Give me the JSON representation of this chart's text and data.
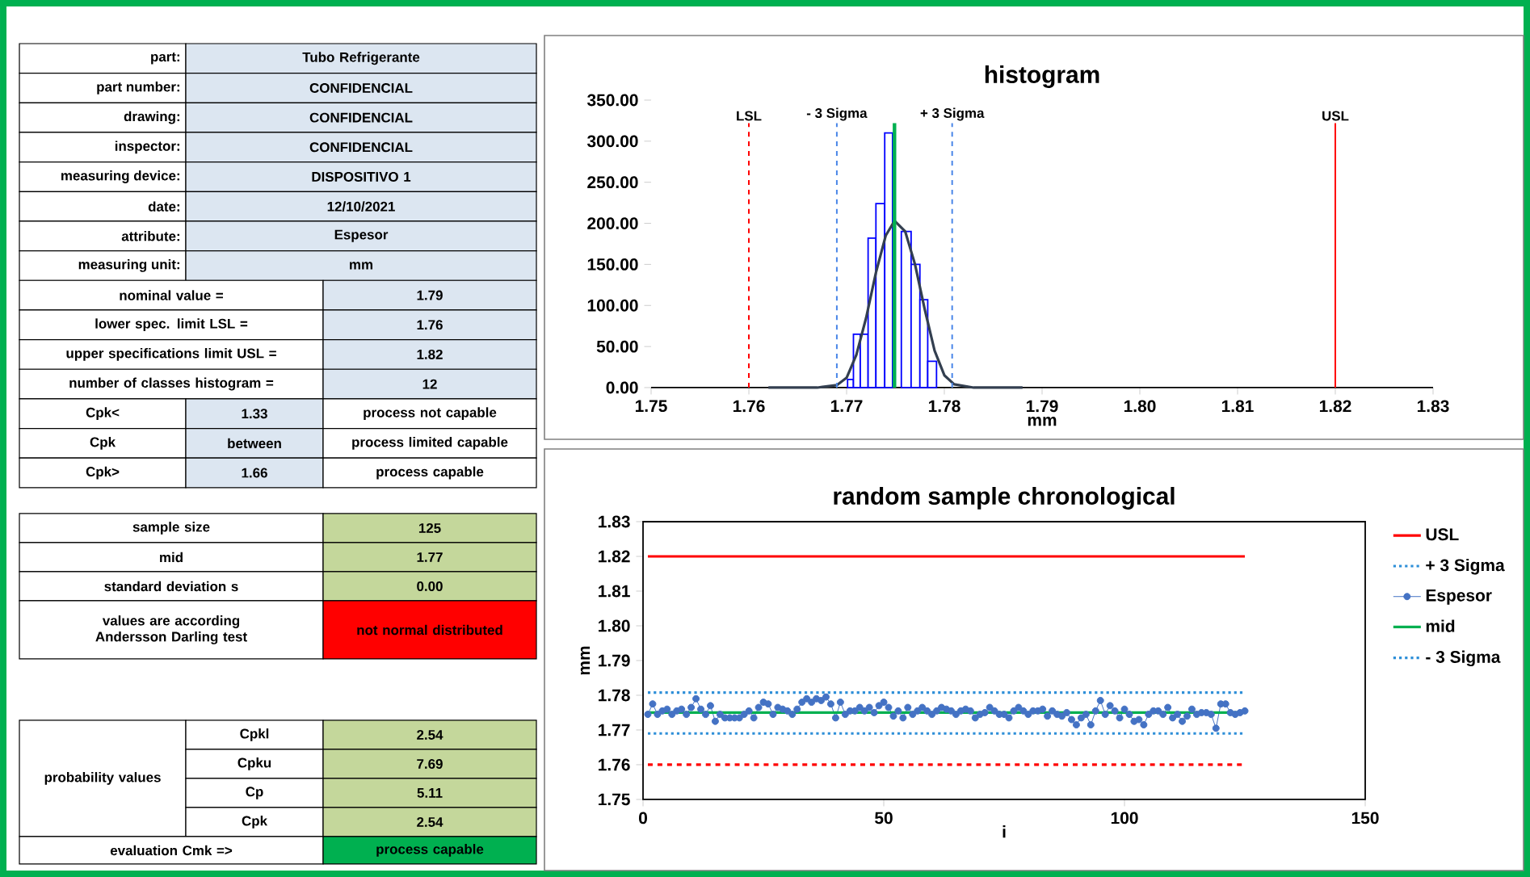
{
  "chart_data": [
    {
      "type": "other",
      "annotations": [
        "part:",
        "Tubo Refrigerante",
        "part number:",
        "CONFIDENCIAL",
        "drawing:",
        "CONFIDENCIAL",
        "inspector:",
        "CONFIDENCIAL",
        "measuring device:",
        "DISPOSITIVO 1",
        "date:",
        "12/10/2021",
        "attribute:",
        "Espesor",
        "measuring unit:",
        "mm",
        "nominal value =",
        "1.79",
        "lower spec. limit LSL =",
        "1.76",
        "upper specifications limit USL =",
        "1.82",
        "number of classes histogram =",
        "12",
        "Cpk<",
        "1.33",
        "process not capable",
        "Cpk",
        "between",
        "process limited capable",
        "Cpk>",
        "1.66",
        "process capable",
        "sample size",
        "125",
        "mid",
        "1.77",
        "standard deviation s",
        "0.00",
        "values are according Andersson Darling test",
        "not normal distributed",
        "probability values",
        "Cpkl",
        "2.54",
        "Cpku",
        "7.69",
        "Cp",
        "5.11",
        "Cpk",
        "2.54",
        "evaluation Cmk =>",
        "process capable"
      ]
    },
    {
      "type": "histogram",
      "title": "histogram",
      "xlabel": "mm",
      "xlim": [
        1.75,
        1.83
      ],
      "xticks": [
        1.75,
        1.76,
        1.77,
        1.78,
        1.79,
        {
          "value": 1.8,
          "label": "1.80"
        },
        1.81,
        1.82,
        1.83
      ],
      "ylim": [
        0,
        350
      ],
      "yticks": [
        {
          "value": 0,
          "label": "0.00"
        },
        {
          "value": 50,
          "label": "50.00"
        },
        {
          "value": 100,
          "label": "100.00"
        },
        {
          "value": 150,
          "label": "150.00"
        },
        {
          "value": 200,
          "label": "200.00"
        },
        {
          "value": 250,
          "label": "250.00"
        },
        {
          "value": 300,
          "label": "300.00"
        },
        {
          "value": 350,
          "label": "350.00"
        }
      ],
      "series": [
        {
          "type": "histogram",
          "color": "#0000ff",
          "bins": [
            1.7701,
            1.7707,
            1.7714,
            1.7722,
            1.773,
            1.7739,
            1.7747,
            1.7756,
            1.7766,
            1.7775,
            1.7783,
            1.7792
          ],
          "values": [
            10,
            65,
            65,
            182,
            224,
            310,
            null,
            190,
            150,
            107,
            32
          ]
        },
        {
          "type": "line",
          "color": "#333f50",
          "x": [
            1.762,
            1.767,
            1.769,
            1.77,
            1.771,
            1.772,
            1.773,
            1.774,
            1.7749,
            1.776,
            1.777,
            1.778,
            1.779,
            1.78,
            1.781,
            1.783,
            1.788
          ],
          "values": [
            0,
            0,
            3,
            12,
            40,
            85,
            140,
            185,
            203,
            190,
            150,
            95,
            45,
            15,
            4,
            0,
            0
          ]
        }
      ],
      "ref_lines": [
        {
          "axis": "x",
          "value": 1.76,
          "label": "LSL",
          "color": "#ff0000",
          "line_style": "dashed"
        },
        {
          "axis": "x",
          "value": 1.82,
          "label": "USL",
          "color": "#ff0000",
          "line_style": "solid"
        },
        {
          "axis": "x",
          "value": 1.769,
          "label": "- 3 Sigma",
          "color": "#4a86e8",
          "line_style": "dashed"
        },
        {
          "axis": "x",
          "value": 1.7808,
          "label": "+ 3 Sigma",
          "color": "#4a86e8",
          "line_style": "dashed"
        },
        {
          "axis": "x",
          "value": 1.7749,
          "color": "#00b050",
          "line_style": "solid"
        }
      ]
    },
    {
      "type": "line",
      "title": "random sample chronological",
      "xlabel": "i",
      "ylabel": "mm",
      "xlim": [
        0,
        150
      ],
      "xticks": [
        0,
        50,
        100,
        150
      ],
      "ylim": [
        1.75,
        1.83
      ],
      "yticks": [
        1.75,
        1.76,
        1.77,
        1.78,
        1.79,
        {
          "value": 1.8,
          "label": "1.80"
        },
        1.81,
        1.82,
        1.83
      ],
      "legend": "right",
      "series": [
        {
          "name": "USL",
          "color": "#ff0000",
          "line_style": "solid",
          "x": [
            1,
            125
          ],
          "values": [
            1.82,
            1.82
          ]
        },
        {
          "name": "+ 3 Sigma",
          "color": "#2e8fd8",
          "line_style": "dotted",
          "x": [
            1,
            125
          ],
          "values": [
            1.7808,
            1.7808
          ]
        },
        {
          "name": "Espesor",
          "color": "#4472c4",
          "marker": "circle",
          "line_style": "solid",
          "x": [
            1,
            2,
            3,
            4,
            5,
            6,
            7,
            8,
            9,
            10,
            11,
            12,
            13,
            14,
            15,
            16,
            17,
            18,
            19,
            20,
            21,
            22,
            23,
            24,
            25,
            26,
            27,
            28,
            29,
            30,
            31,
            32,
            33,
            34,
            35,
            36,
            37,
            38,
            39,
            40,
            41,
            42,
            43,
            44,
            45,
            46,
            47,
            48,
            49,
            50,
            51,
            52,
            53,
            54,
            55,
            56,
            57,
            58,
            59,
            60,
            61,
            62,
            63,
            64,
            65,
            66,
            67,
            68,
            69,
            70,
            71,
            72,
            73,
            74,
            75,
            76,
            77,
            78,
            79,
            80,
            81,
            82,
            83,
            84,
            85,
            86,
            87,
            88,
            89,
            90,
            91,
            92,
            93,
            94,
            95,
            96,
            97,
            98,
            99,
            100,
            101,
            102,
            103,
            104,
            105,
            106,
            107,
            108,
            109,
            110,
            111,
            112,
            113,
            114,
            115,
            116,
            117,
            118,
            119,
            120,
            121,
            122,
            123,
            124,
            125
          ],
          "values": [
            1.7745,
            1.7775,
            1.7745,
            1.7755,
            1.776,
            1.7745,
            1.7755,
            1.776,
            1.7745,
            1.7765,
            1.779,
            1.776,
            1.7745,
            1.777,
            1.7725,
            1.7745,
            1.7735,
            1.7735,
            1.7735,
            1.7735,
            1.7745,
            1.7755,
            1.7735,
            1.7765,
            1.778,
            1.7775,
            1.7745,
            1.7765,
            1.776,
            1.7755,
            1.7745,
            1.776,
            1.778,
            1.779,
            1.778,
            1.779,
            1.7785,
            1.7795,
            1.7775,
            1.7735,
            1.778,
            1.7745,
            1.7755,
            1.7755,
            1.7765,
            1.7755,
            1.7765,
            1.775,
            1.777,
            1.778,
            1.7765,
            1.774,
            1.7755,
            1.7735,
            1.7765,
            1.7745,
            1.7755,
            1.7765,
            1.7755,
            1.7745,
            1.7755,
            1.7765,
            1.776,
            1.7755,
            1.7745,
            1.7755,
            1.776,
            1.7755,
            1.7735,
            1.7745,
            1.775,
            1.7765,
            1.7755,
            1.7745,
            1.7745,
            1.7735,
            1.7755,
            1.7765,
            1.7755,
            1.7745,
            1.7755,
            1.7755,
            1.776,
            1.774,
            1.7755,
            1.7745,
            1.774,
            1.775,
            1.773,
            1.7715,
            1.7735,
            1.7745,
            1.7715,
            1.7755,
            1.7785,
            1.7745,
            1.777,
            1.7755,
            1.7735,
            1.776,
            1.7745,
            1.7725,
            1.773,
            1.7715,
            1.7745,
            1.7755,
            1.7755,
            1.7745,
            1.7765,
            1.7735,
            1.7745,
            1.7725,
            1.774,
            1.776,
            1.7745,
            1.775,
            1.775,
            1.7745,
            1.7705,
            1.7775,
            1.7775,
            1.775,
            1.7745,
            1.775,
            1.7755
          ]
        },
        {
          "name": "mid",
          "color": "#00b050",
          "line_style": "solid",
          "x": [
            1,
            125
          ],
          "values": [
            1.775,
            1.775
          ]
        },
        {
          "name": "- 3 Sigma",
          "color": "#2e8fd8",
          "line_style": "dotted",
          "x": [
            1,
            125
          ],
          "values": [
            1.769,
            1.769
          ]
        },
        {
          "color": "#ff0000",
          "line_style": "dashed",
          "x": [
            1,
            125
          ],
          "values": [
            1.76,
            1.76
          ]
        }
      ]
    }
  ]
}
